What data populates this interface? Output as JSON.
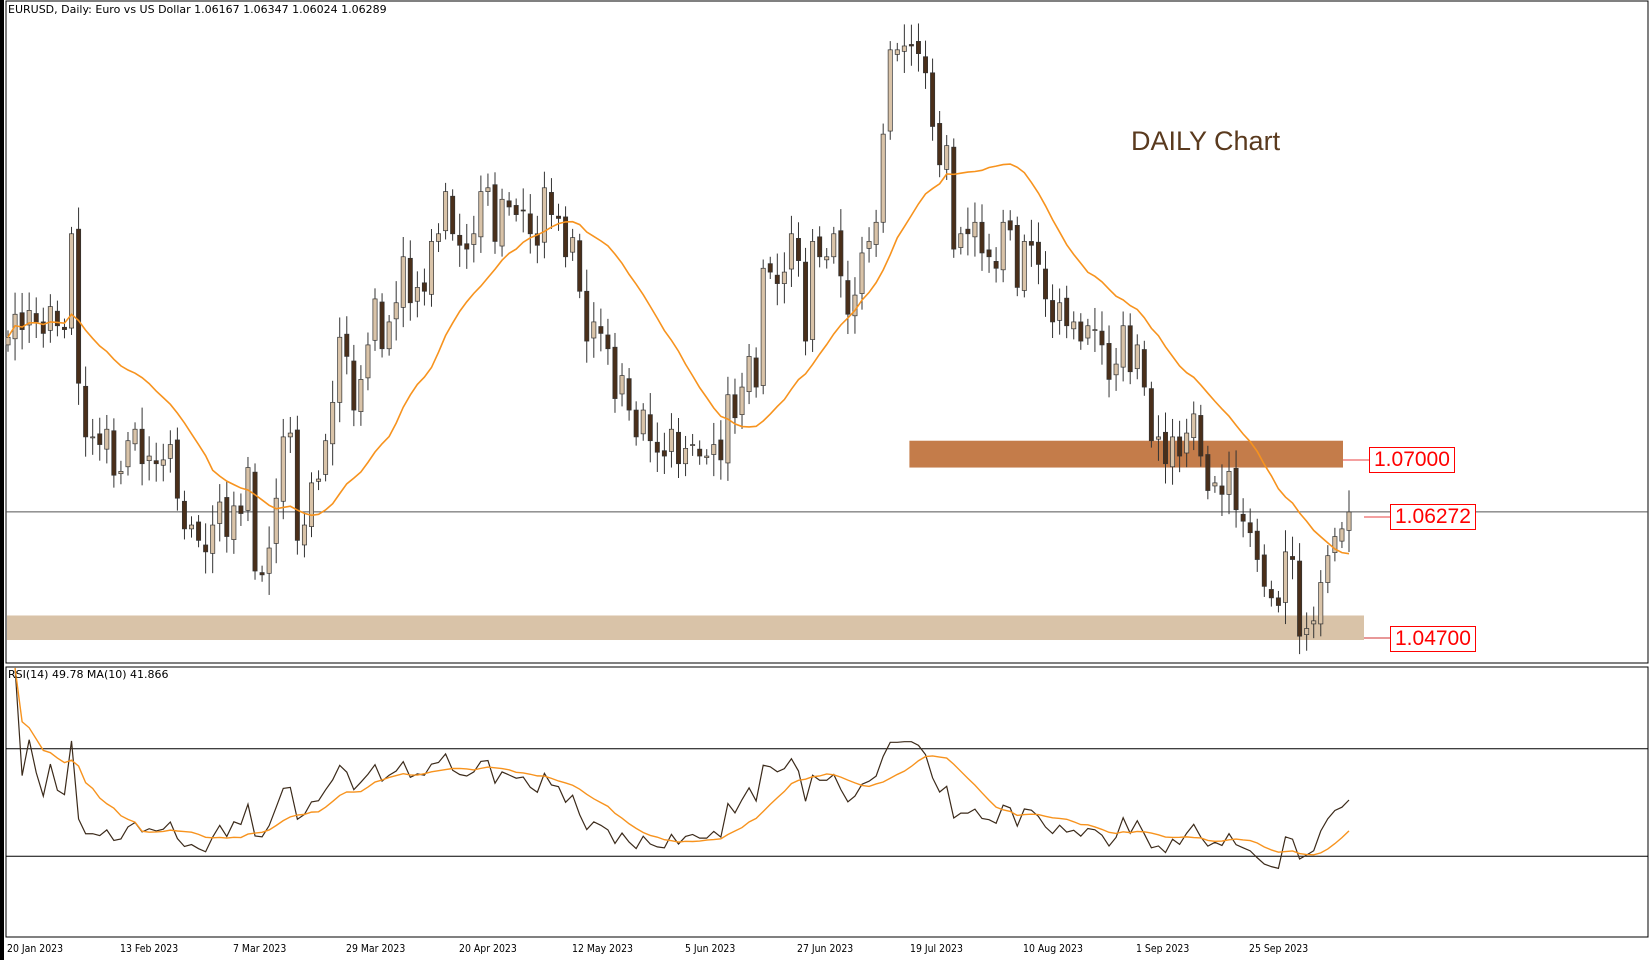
{
  "header": {
    "text": "EURUSD, Daily:  Euro vs US Dollar  1.06167 1.06347 1.06024 1.06289"
  },
  "annotation": {
    "text": "DAILY Chart"
  },
  "rsi_header": {
    "text": "RSI(14) 49.78 MA(10) 41.866"
  },
  "levels": {
    "resistance": "1.07000",
    "current": "1.06272",
    "support": "1.04700"
  },
  "colors": {
    "bull": "#d9c3a8",
    "bear": "#4a2f1a",
    "ma": "#f7931e",
    "resistance_zone": "#c47c4a",
    "support_zone": "#d9c3a8",
    "label": "#ff0000",
    "rsi": "#3b2a1a"
  },
  "chart_data": {
    "type": "candlestick",
    "symbol": "EURUSD",
    "timeframe": "Daily",
    "ylim": [
      1.043,
      1.1295
    ],
    "x_tick_labels": [
      "20 Jan 2023",
      "13 Feb 2023",
      "7 Mar 2023",
      "29 Mar 2023",
      "20 Apr 2023",
      "12 May 2023",
      "5 Jun 2023",
      "27 Jun 2023",
      "19 Jul 2023",
      "10 Aug 2023",
      "1 Sep 2023",
      "25 Sep 2023"
    ],
    "closes": [
      1.0855,
      1.0885,
      1.0865,
      1.089,
      1.0875,
      1.086,
      1.0895,
      1.087,
      1.0865,
      1.099,
      1.0795,
      1.0725,
      1.0725,
      1.0715,
      1.0735,
      1.0675,
      1.068,
      1.072,
      1.0735,
      1.069,
      1.07,
      1.069,
      1.0695,
      1.0715,
      1.0645,
      1.0605,
      1.061,
      1.059,
      1.0575,
      1.061,
      1.064,
      1.0595,
      1.0635,
      1.0625,
      1.0685,
      1.055,
      1.0545,
      1.058,
      1.0645,
      1.0725,
      1.073,
      1.059,
      1.061,
      1.0665,
      1.067,
      1.072,
      1.077,
      1.0855,
      1.083,
      1.076,
      1.08,
      1.0845,
      1.0905,
      1.084,
      1.0875,
      1.09,
      1.096,
      1.09,
      1.092,
      1.0915,
      1.098,
      1.099,
      1.1045,
      1.099,
      1.0975,
      1.097,
      1.099,
      1.1045,
      1.105,
      1.098,
      1.1035,
      1.1025,
      1.1015,
      1.102,
      1.099,
      1.0975,
      1.105,
      1.1015,
      1.101,
      1.096,
      1.0985,
      1.0915,
      1.085,
      1.0875,
      1.086,
      1.084,
      1.0775,
      1.0805,
      1.076,
      1.0725,
      1.076,
      1.072,
      1.0705,
      1.07,
      1.0735,
      1.069,
      1.071,
      1.0715,
      1.07,
      1.07,
      1.0715,
      1.0695,
      1.078,
      1.075,
      1.079,
      1.083,
      1.079,
      1.0945,
      1.094,
      1.0925,
      1.094,
      1.099,
      1.0955,
      1.085,
      1.098,
      1.096,
      1.096,
      1.099,
      1.0935,
      1.0885,
      1.091,
      1.0965,
      1.098,
      1.1005,
      1.112,
      1.123,
      1.123,
      1.1235,
      1.1235,
      1.1225,
      1.12,
      1.113,
      1.108,
      1.1105,
      1.097,
      1.099,
      1.099,
      1.1005,
      1.0965,
      1.096,
      1.0945,
      1.1005,
      1.0995,
      1.092,
      1.098,
      1.0975,
      1.095,
      1.0905,
      1.0875,
      1.09,
      1.087,
      1.0875,
      1.085,
      1.087,
      1.0865,
      1.0845,
      1.08,
      1.082,
      1.087,
      1.081,
      1.0845,
      1.079,
      1.072,
      1.0725,
      1.069,
      1.0725,
      1.07,
      1.073,
      1.0755,
      1.07,
      1.0655,
      1.0665,
      1.065,
      1.068,
      1.063,
      1.0615,
      1.06,
      1.0565,
      1.053,
      1.0515,
      1.0505,
      1.0575,
      1.0565,
      1.0465,
      1.0475,
      1.0485,
      1.0535,
      1.057,
      1.0595,
      1.0605,
      1.0627
    ],
    "moving_average_period": 20,
    "horizontal_lines": [
      1.06272
    ],
    "zones": [
      {
        "label": "1.07000",
        "low": 1.0685,
        "high": 1.072
      },
      {
        "label": "1.04700",
        "low": 1.046,
        "high": 1.0492
      }
    ],
    "rsi": {
      "period": 14,
      "ma_period": 10,
      "ylim": [
        0,
        100
      ],
      "levels": [
        70,
        30
      ]
    }
  }
}
